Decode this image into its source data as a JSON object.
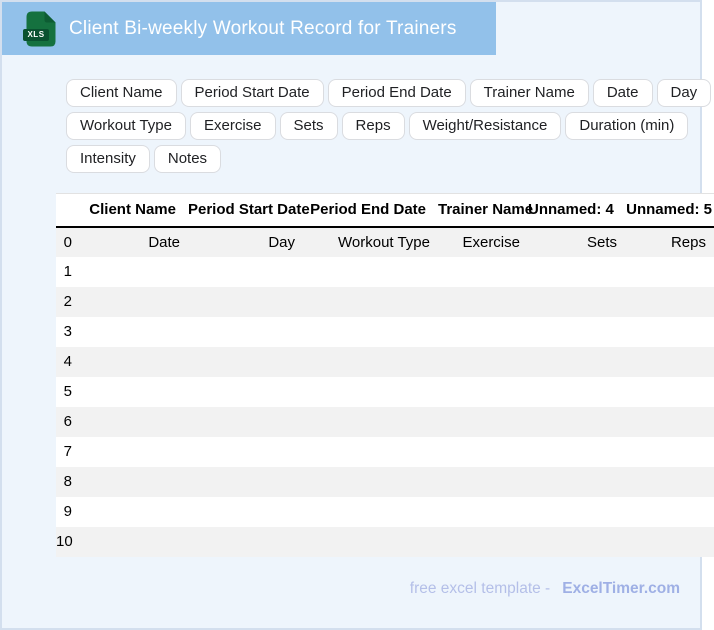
{
  "window": {
    "title": "Client Bi-weekly Workout Record for Trainers",
    "icon_label": "XLS"
  },
  "chips": {
    "rows": [
      [
        "Client Name",
        "Period Start Date",
        "Period End Date",
        "Trainer Name",
        "Date",
        "Day"
      ],
      [
        "Workout Type",
        "Exercise",
        "Sets",
        "Reps",
        "Weight/Resistance",
        "Duration (min)"
      ],
      [
        "Intensity",
        "Notes"
      ]
    ]
  },
  "table": {
    "columns": [
      "",
      "Client Name",
      "Period Start Date",
      "Period End Date",
      "Trainer Name",
      "Unnamed: 4",
      "Unnamed: 5"
    ],
    "rows": [
      {
        "index": "0",
        "cells": [
          "Date",
          "Day",
          "Workout Type",
          "Exercise",
          "Sets",
          "Reps"
        ]
      },
      {
        "index": "1",
        "cells": [
          "",
          "",
          "",
          "",
          "",
          ""
        ]
      },
      {
        "index": "2",
        "cells": [
          "",
          "",
          "",
          "",
          "",
          ""
        ]
      },
      {
        "index": "3",
        "cells": [
          "",
          "",
          "",
          "",
          "",
          ""
        ]
      },
      {
        "index": "4",
        "cells": [
          "",
          "",
          "",
          "",
          "",
          ""
        ]
      },
      {
        "index": "5",
        "cells": [
          "",
          "",
          "",
          "",
          "",
          ""
        ]
      },
      {
        "index": "6",
        "cells": [
          "",
          "",
          "",
          "",
          "",
          ""
        ]
      },
      {
        "index": "7",
        "cells": [
          "",
          "",
          "",
          "",
          "",
          ""
        ]
      },
      {
        "index": "8",
        "cells": [
          "",
          "",
          "",
          "",
          "",
          ""
        ]
      },
      {
        "index": "9",
        "cells": [
          "",
          "",
          "",
          "",
          "",
          ""
        ]
      },
      {
        "index": "10",
        "cells": [
          "",
          "",
          "",
          "",
          "",
          ""
        ]
      }
    ]
  },
  "footer": {
    "text": "free excel template -",
    "brand": "ExcelTimer.com"
  },
  "colors": {
    "header_bar": "#92c1ea",
    "icon_green": "#15713f",
    "icon_dark_green": "#0a5130",
    "page_background": "#eef5fc",
    "page_border": "#d3dfee",
    "row_stripe": "#f2f2f2",
    "header_rule": "#000000",
    "chip_border": "#dadce0",
    "footer_text": "#b4bfe8",
    "footer_brand": "#9fb0e5"
  }
}
